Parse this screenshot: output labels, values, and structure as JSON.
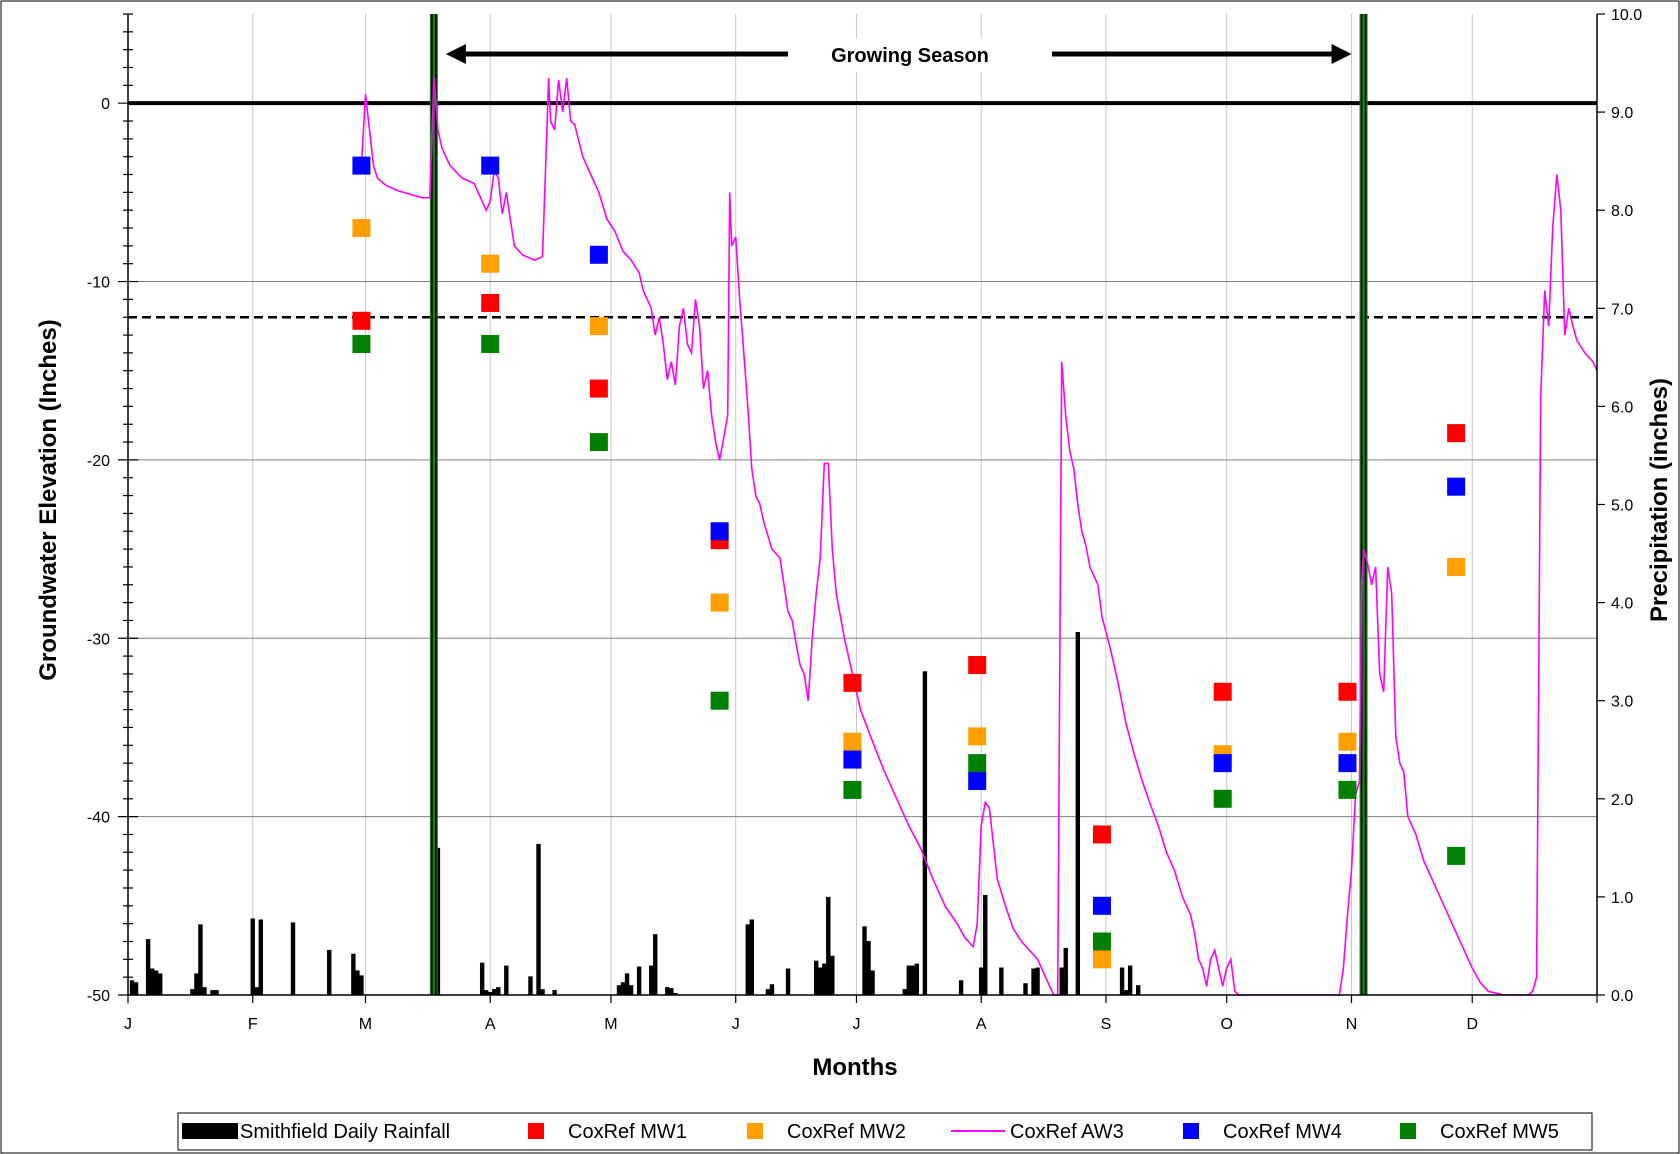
{
  "chart_data": {
    "type": "mixed",
    "xlabel": "Months",
    "ylabel_left": "Groundwater Elevation (Inches)",
    "ylabel_right": "Precipitation (inches)",
    "annotation": "Growing Season",
    "x_domain": [
      0,
      365
    ],
    "ylim_left": [
      -50,
      5
    ],
    "ylim_right": [
      0,
      10
    ],
    "left_ticks": [
      0,
      -10,
      -20,
      -30,
      -40,
      -50
    ],
    "right_ticks": [
      "0.0",
      "1.0",
      "2.0",
      "3.0",
      "4.0",
      "5.0",
      "6.0",
      "7.0",
      "8.0",
      "9.0",
      "10.0"
    ],
    "month_labels": [
      "J",
      "F",
      "M",
      "A",
      "M",
      "J",
      "J",
      "A",
      "S",
      "O",
      "N",
      "D"
    ],
    "month_label_days": [
      0,
      31,
      59,
      90,
      120,
      151,
      181,
      212,
      243,
      273,
      304,
      334
    ],
    "grid": "vertical by month, horizontal at left major ticks",
    "reference_lines": {
      "solid_at": 0,
      "dashed_at": -12
    },
    "growing_season_days": [
      76,
      307
    ],
    "legend_position": "bottom",
    "rainfall": {
      "name": "Smithfield Daily Rainfall",
      "color": "#000000",
      "days": [
        1,
        2,
        5,
        6,
        7,
        8,
        16,
        17,
        18,
        19,
        21,
        22,
        31,
        32,
        33,
        41,
        50,
        56,
        57,
        58,
        76,
        77,
        88,
        89,
        90,
        91,
        92,
        94,
        100,
        102,
        103,
        106,
        122,
        123,
        124,
        125,
        127,
        130,
        131,
        134,
        135,
        136,
        154,
        155,
        159,
        160,
        164,
        171,
        172,
        173,
        174,
        175,
        183,
        184,
        185,
        193,
        194,
        195,
        196,
        198,
        207,
        212,
        213,
        217,
        223,
        225,
        226,
        232,
        233,
        236,
        247,
        248,
        249,
        251
      ],
      "values": [
        0.15,
        0.13,
        0.57,
        0.27,
        0.25,
        0.22,
        0.06,
        0.22,
        0.72,
        0.08,
        0.05,
        0.05,
        0.78,
        0.08,
        0.77,
        0.74,
        0.46,
        0.42,
        0.25,
        0.2,
        1.52,
        1.5,
        0.33,
        0.05,
        0.03,
        0.06,
        0.08,
        0.3,
        0.19,
        1.54,
        0.06,
        0.05,
        0.1,
        0.13,
        0.22,
        0.1,
        0.29,
        0.3,
        0.62,
        0.08,
        0.07,
        0.02,
        0.72,
        0.77,
        0.06,
        0.11,
        0.27,
        0.35,
        0.28,
        0.32,
        1.0,
        0.4,
        0.7,
        0.55,
        0.25,
        0.06,
        0.3,
        0.3,
        0.32,
        3.3,
        0.15,
        0.28,
        1.02,
        0.28,
        0.12,
        0.27,
        0.28,
        0.28,
        0.48,
        3.7,
        0.28,
        0.05,
        0.3,
        0.1
      ]
    },
    "aw3": {
      "name": "CoxRef AW3",
      "color": "#ff00ff",
      "points": [
        [
          57,
          -4
        ],
        [
          58,
          -3.5
        ],
        [
          59,
          0.5
        ],
        [
          60,
          -1.5
        ],
        [
          61,
          -3.5
        ],
        [
          62,
          -4.2
        ],
        [
          64,
          -4.6
        ],
        [
          67,
          -4.9
        ],
        [
          70,
          -5.1
        ],
        [
          73,
          -5.3
        ],
        [
          75,
          -5.3
        ],
        [
          76,
          1.5
        ],
        [
          77,
          -1.5
        ],
        [
          78,
          -2.5
        ],
        [
          80,
          -3.5
        ],
        [
          83,
          -4.2
        ],
        [
          86,
          -4.5
        ],
        [
          88,
          -5.5
        ],
        [
          89,
          -6
        ],
        [
          90,
          -5.5
        ],
        [
          91,
          -3.8
        ],
        [
          92,
          -4.2
        ],
        [
          93,
          -6.2
        ],
        [
          94,
          -5
        ],
        [
          95,
          -6.5
        ],
        [
          96,
          -8
        ],
        [
          98,
          -8.5
        ],
        [
          101,
          -8.8
        ],
        [
          103,
          -8.6
        ],
        [
          104,
          -2
        ],
        [
          104.5,
          1.4
        ],
        [
          105,
          -1
        ],
        [
          106,
          -1.5
        ],
        [
          107,
          1.3
        ],
        [
          108,
          -0.5
        ],
        [
          109,
          1.4
        ],
        [
          110,
          -1
        ],
        [
          111,
          -1.2
        ],
        [
          113,
          -3
        ],
        [
          115,
          -4
        ],
        [
          117,
          -5
        ],
        [
          119,
          -6.5
        ],
        [
          121,
          -7.2
        ],
        [
          123,
          -8.3
        ],
        [
          125,
          -8.8
        ],
        [
          127,
          -9.5
        ],
        [
          128,
          -10.5
        ],
        [
          130,
          -11.5
        ],
        [
          131,
          -13
        ],
        [
          132,
          -12
        ],
        [
          133,
          -13.5
        ],
        [
          134,
          -15.5
        ],
        [
          135,
          -14.5
        ],
        [
          136,
          -15.8
        ],
        [
          137,
          -12.5
        ],
        [
          138,
          -11.5
        ],
        [
          139,
          -13.5
        ],
        [
          140,
          -14
        ],
        [
          141,
          -11
        ],
        [
          142,
          -12.5
        ],
        [
          143,
          -16
        ],
        [
          144,
          -15
        ],
        [
          145,
          -17.5
        ],
        [
          146,
          -19
        ],
        [
          147,
          -20
        ],
        [
          148,
          -18.8
        ],
        [
          149,
          -17.5
        ],
        [
          149.5,
          -5
        ],
        [
          150,
          -8
        ],
        [
          151,
          -7.5
        ],
        [
          152,
          -11
        ],
        [
          153,
          -14
        ],
        [
          154,
          -17
        ],
        [
          155,
          -20.5
        ],
        [
          156,
          -22
        ],
        [
          157,
          -22.5
        ],
        [
          158,
          -23.5
        ],
        [
          160,
          -25
        ],
        [
          162,
          -25.5
        ],
        [
          164,
          -28.5
        ],
        [
          165,
          -29
        ],
        [
          166,
          -30.3
        ],
        [
          167,
          -31.5
        ],
        [
          168,
          -32
        ],
        [
          169,
          -33.5
        ],
        [
          170,
          -30
        ],
        [
          171,
          -27.5
        ],
        [
          172,
          -25.5
        ],
        [
          173,
          -20.2
        ],
        [
          174,
          -20.2
        ],
        [
          175,
          -25
        ],
        [
          176,
          -27.5
        ],
        [
          178,
          -30
        ],
        [
          180,
          -32
        ],
        [
          182,
          -34
        ],
        [
          185,
          -35.8
        ],
        [
          188,
          -37.5
        ],
        [
          191,
          -39
        ],
        [
          194,
          -40.5
        ],
        [
          197,
          -41.8
        ],
        [
          200,
          -43.5
        ],
        [
          203,
          -45
        ],
        [
          206,
          -46
        ],
        [
          208,
          -46.8
        ],
        [
          210,
          -47.3
        ],
        [
          211,
          -46
        ],
        [
          212,
          -40.5
        ],
        [
          213,
          -39.2
        ],
        [
          214,
          -39.5
        ],
        [
          215,
          -41.5
        ],
        [
          216,
          -43.5
        ],
        [
          218,
          -45
        ],
        [
          220,
          -46.3
        ],
        [
          222,
          -47
        ],
        [
          224,
          -47.5
        ],
        [
          226,
          -48
        ],
        [
          227,
          -48.5
        ],
        [
          228,
          -49
        ],
        [
          229,
          -49.5
        ],
        [
          230,
          -50
        ],
        [
          231,
          -50
        ],
        [
          232,
          -14.5
        ],
        [
          233,
          -17.5
        ],
        [
          234,
          -19.5
        ],
        [
          235,
          -20.5
        ],
        [
          236,
          -22.5
        ],
        [
          237,
          -24
        ],
        [
          238,
          -24.8
        ],
        [
          239,
          -26
        ],
        [
          241,
          -27
        ],
        [
          242,
          -28.8
        ],
        [
          244,
          -30.5
        ],
        [
          246,
          -32.5
        ],
        [
          248,
          -34.8
        ],
        [
          250,
          -36.5
        ],
        [
          252,
          -38
        ],
        [
          254,
          -39.3
        ],
        [
          256,
          -40.5
        ],
        [
          258,
          -42
        ],
        [
          260,
          -43
        ],
        [
          262,
          -44.5
        ],
        [
          264,
          -45.5
        ],
        [
          265,
          -46.5
        ],
        [
          266,
          -48
        ],
        [
          267,
          -48.5
        ],
        [
          268,
          -49.5
        ],
        [
          269,
          -48
        ],
        [
          270,
          -47.5
        ],
        [
          271,
          -48.5
        ],
        [
          272,
          -49.5
        ],
        [
          273,
          -48.5
        ],
        [
          274,
          -48
        ],
        [
          275,
          -49.8
        ],
        [
          276,
          -50
        ],
        [
          300,
          -50
        ],
        [
          301,
          -50
        ],
        [
          302,
          -48.5
        ],
        [
          303,
          -45.5
        ],
        [
          304,
          -43
        ],
        [
          305,
          -38.8
        ],
        [
          306,
          -38
        ],
        [
          306.5,
          -27
        ],
        [
          307,
          -25
        ],
        [
          308,
          -25.8
        ],
        [
          309,
          -27
        ],
        [
          310,
          -26
        ],
        [
          311,
          -32
        ],
        [
          312,
          -33
        ],
        [
          313,
          -26
        ],
        [
          314,
          -27.5
        ],
        [
          315,
          -35.5
        ],
        [
          316,
          -37
        ],
        [
          317,
          -37.5
        ],
        [
          318,
          -40
        ],
        [
          320,
          -41
        ],
        [
          322,
          -42.5
        ],
        [
          324,
          -43.5
        ],
        [
          326,
          -44.5
        ],
        [
          328,
          -45.5
        ],
        [
          330,
          -46.5
        ],
        [
          332,
          -47.5
        ],
        [
          334,
          -48.5
        ],
        [
          336,
          -49.3
        ],
        [
          338,
          -49.8
        ],
        [
          342,
          -50
        ],
        [
          348,
          -50
        ],
        [
          349,
          -49.8
        ],
        [
          350,
          -49
        ],
        [
          351,
          -16.5
        ],
        [
          352,
          -10.5
        ],
        [
          353,
          -12.5
        ],
        [
          354,
          -7
        ],
        [
          355,
          -4
        ],
        [
          356,
          -6
        ],
        [
          357,
          -13
        ],
        [
          358,
          -11.5
        ],
        [
          359,
          -12.5
        ],
        [
          360,
          -13.3
        ],
        [
          362,
          -14
        ],
        [
          364,
          -14.5
        ],
        [
          365,
          -15
        ]
      ]
    },
    "markers": {
      "months_days": [
        58,
        90,
        117,
        147,
        180,
        211,
        242,
        272,
        303,
        330
      ],
      "series": [
        {
          "name": "CoxRef MW1",
          "color": "#ff0000",
          "values": [
            -12.2,
            -11.2,
            -16,
            -24.5,
            -32.5,
            -31.5,
            -41,
            -33,
            -33,
            -18.5
          ]
        },
        {
          "name": "CoxRef MW2",
          "color": "#ffa000",
          "values": [
            -7,
            -9,
            -12.5,
            -28,
            -35.8,
            -35.5,
            -48,
            -36.5,
            -35.8,
            -26
          ]
        },
        {
          "name": "CoxRef MW4",
          "color": "#0000ff",
          "values": [
            -3.5,
            -3.5,
            -8.5,
            -24,
            -36.8,
            -38,
            -45,
            -37,
            -37,
            -21.5
          ]
        },
        {
          "name": "CoxRef MW5",
          "color": "#008000",
          "values": [
            -13.5,
            -13.5,
            -19,
            -33.5,
            -38.5,
            -37,
            -47,
            -39,
            -38.5,
            -42.2
          ]
        }
      ]
    }
  },
  "legend": [
    {
      "label": "Smithfield Daily Rainfall",
      "type": "bar",
      "color": "#000000"
    },
    {
      "label": "CoxRef MW1",
      "type": "square",
      "color": "#ff0000"
    },
    {
      "label": "CoxRef MW2",
      "type": "square",
      "color": "#ffa000"
    },
    {
      "label": "CoxRef AW3",
      "type": "line",
      "color": "#ff00ff"
    },
    {
      "label": "CoxRef MW4",
      "type": "square",
      "color": "#0000ff"
    },
    {
      "label": "CoxRef MW5",
      "type": "square",
      "color": "#008000"
    }
  ]
}
